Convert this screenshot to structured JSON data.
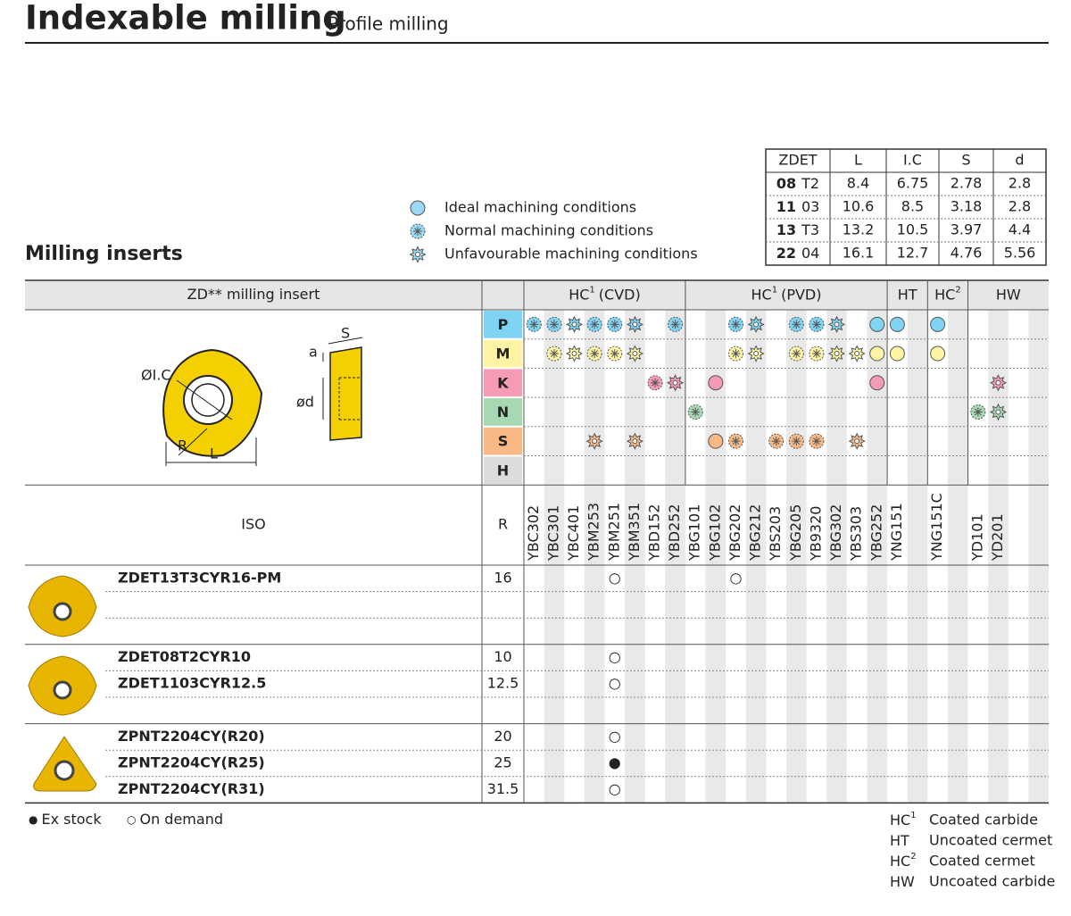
{
  "header": {
    "title": "Indexable milling",
    "subtitle": "Profile milling"
  },
  "section_title": "Milling inserts",
  "legend": [
    {
      "code": "I",
      "label": "Ideal machining conditions"
    },
    {
      "code": "N",
      "label": "Normal machining conditions"
    },
    {
      "code": "U",
      "label": "Unfavourable machining conditions"
    }
  ],
  "dimensions": {
    "columns": [
      "ZDET",
      "L",
      "I.C",
      "S",
      "d"
    ],
    "rows": [
      {
        "size": "08",
        "code": "T2",
        "values": [
          "8.4",
          "6.75",
          "2.78",
          "2.8"
        ]
      },
      {
        "size": "11",
        "code": "03",
        "values": [
          "10.6",
          "8.5",
          "3.18",
          "2.8"
        ]
      },
      {
        "size": "13",
        "code": "T3",
        "values": [
          "13.2",
          "10.5",
          "3.97",
          "4.4"
        ]
      },
      {
        "size": "22",
        "code": "04",
        "values": [
          "16.1",
          "12.7",
          "4.76",
          "5.56"
        ]
      }
    ]
  },
  "diagram": {
    "ic": "ØI.C",
    "r": "R",
    "l": "L",
    "s": "S",
    "a": "a",
    "d": "ød"
  },
  "table": {
    "insert_header": "ZD** milling insert",
    "iso_header": "ISO",
    "r_header": "R",
    "groups": [
      {
        "label": "HC",
        "sup": "1",
        "suffix": "(CVD)",
        "span": 8
      },
      {
        "label": "HC",
        "sup": "1",
        "suffix": "(PVD)",
        "span": 10
      },
      {
        "label": "HT",
        "span": 2
      },
      {
        "label": "HC",
        "sup": "2",
        "span": 2
      },
      {
        "label": "HW",
        "span": 4
      }
    ],
    "grades": [
      "YBC302",
      "YBC301",
      "YBC401",
      "YBM253",
      "YBM251",
      "YBM351",
      "YBD152",
      "YBD252",
      "YBG101",
      "YBG102",
      "YBG202",
      "YBG212",
      "YBS203",
      "YBG205",
      "YB9320",
      "YBG302",
      "YBS303",
      "YBG252",
      "YNG151",
      null,
      "YNG151C",
      null,
      "YD101",
      "YD201",
      null,
      null
    ],
    "materials": [
      {
        "letter": "P",
        "color": "#7fd3f3",
        "ratings": [
          "N",
          "N",
          "U",
          "N",
          "N",
          "U",
          null,
          "N",
          null,
          null,
          "N",
          "U",
          null,
          "N",
          "N",
          "U",
          null,
          "I",
          "I",
          null,
          "I",
          null,
          null,
          null,
          null,
          null
        ]
      },
      {
        "letter": "M",
        "color": "#fff4a3",
        "ratings": [
          null,
          "N",
          "U",
          "N",
          "N",
          "U",
          null,
          null,
          null,
          null,
          "N",
          "U",
          null,
          "N",
          "N",
          "U",
          "U",
          "I",
          "I",
          null,
          "I",
          null,
          null,
          null,
          null,
          null
        ]
      },
      {
        "letter": "K",
        "color": "#f59bb5",
        "ratings": [
          null,
          null,
          null,
          null,
          null,
          null,
          "N",
          "U",
          null,
          "I",
          null,
          null,
          null,
          null,
          null,
          null,
          null,
          "I",
          null,
          null,
          null,
          null,
          null,
          "U",
          null,
          null
        ]
      },
      {
        "letter": "N",
        "color": "#a6d8b4",
        "ratings": [
          null,
          null,
          null,
          null,
          null,
          null,
          null,
          null,
          "N",
          null,
          null,
          null,
          null,
          null,
          null,
          null,
          null,
          null,
          null,
          null,
          null,
          null,
          "N",
          "U",
          null,
          null
        ]
      },
      {
        "letter": "S",
        "color": "#f8b987",
        "ratings": [
          null,
          null,
          null,
          "U",
          null,
          "U",
          null,
          null,
          null,
          "I",
          "N",
          null,
          "N",
          "N",
          "N",
          null,
          "U",
          null,
          null,
          null,
          null,
          null,
          null,
          null,
          null,
          null
        ]
      },
      {
        "letter": "H",
        "color": "#dcdcdc",
        "ratings": [
          null,
          null,
          null,
          null,
          null,
          null,
          null,
          null,
          null,
          null,
          null,
          null,
          null,
          null,
          null,
          null,
          null,
          null,
          null,
          null,
          null,
          null,
          null,
          null,
          null,
          null
        ]
      }
    ],
    "product_groups": [
      {
        "rows": [
          {
            "code": "ZDET13T3CYR16-PM",
            "r": "16",
            "stock": [
              null,
              null,
              null,
              null,
              "○",
              null,
              null,
              null,
              null,
              null,
              "○",
              null,
              null,
              null,
              null,
              null,
              null,
              null,
              null,
              null,
              null,
              null,
              null,
              null,
              null,
              null
            ]
          }
        ]
      },
      {
        "rows": [
          {
            "code": "ZDET08T2CYR10",
            "r": "10",
            "stock": [
              null,
              null,
              null,
              null,
              "○",
              null,
              null,
              null,
              null,
              null,
              null,
              null,
              null,
              null,
              null,
              null,
              null,
              null,
              null,
              null,
              null,
              null,
              null,
              null,
              null,
              null
            ]
          },
          {
            "code": "ZDET1103CYR12.5",
            "r": "12.5",
            "stock": [
              null,
              null,
              null,
              null,
              "○",
              null,
              null,
              null,
              null,
              null,
              null,
              null,
              null,
              null,
              null,
              null,
              null,
              null,
              null,
              null,
              null,
              null,
              null,
              null,
              null,
              null
            ]
          }
        ]
      },
      {
        "rows": [
          {
            "code": "ZPNT2204CY(R20)",
            "r": "20",
            "stock": [
              null,
              null,
              null,
              null,
              "○",
              null,
              null,
              null,
              null,
              null,
              null,
              null,
              null,
              null,
              null,
              null,
              null,
              null,
              null,
              null,
              null,
              null,
              null,
              null,
              null,
              null
            ]
          },
          {
            "code": "ZPNT2204CY(R25)",
            "r": "25",
            "stock": [
              null,
              null,
              null,
              null,
              "●",
              null,
              null,
              null,
              null,
              null,
              null,
              null,
              null,
              null,
              null,
              null,
              null,
              null,
              null,
              null,
              null,
              null,
              null,
              null,
              null,
              null
            ]
          },
          {
            "code": "ZPNT2204CY(R31)",
            "r": "31.5",
            "stock": [
              null,
              null,
              null,
              null,
              "○",
              null,
              null,
              null,
              null,
              null,
              null,
              null,
              null,
              null,
              null,
              null,
              null,
              null,
              null,
              null,
              null,
              null,
              null,
              null,
              null,
              null
            ]
          }
        ]
      }
    ]
  },
  "footer": {
    "ex_stock": {
      "symbol": "●",
      "label": "Ex stock"
    },
    "on_demand": {
      "symbol": "○",
      "label": "On demand"
    }
  },
  "glossary": [
    {
      "abbr": "HC",
      "sup": "1",
      "label": "Coated carbide"
    },
    {
      "abbr": "HT",
      "label": "Uncoated cermet"
    },
    {
      "abbr": "HC",
      "sup": "2",
      "label": "Coated cermet"
    },
    {
      "abbr": "HW",
      "label": "Uncoated carbide"
    }
  ]
}
